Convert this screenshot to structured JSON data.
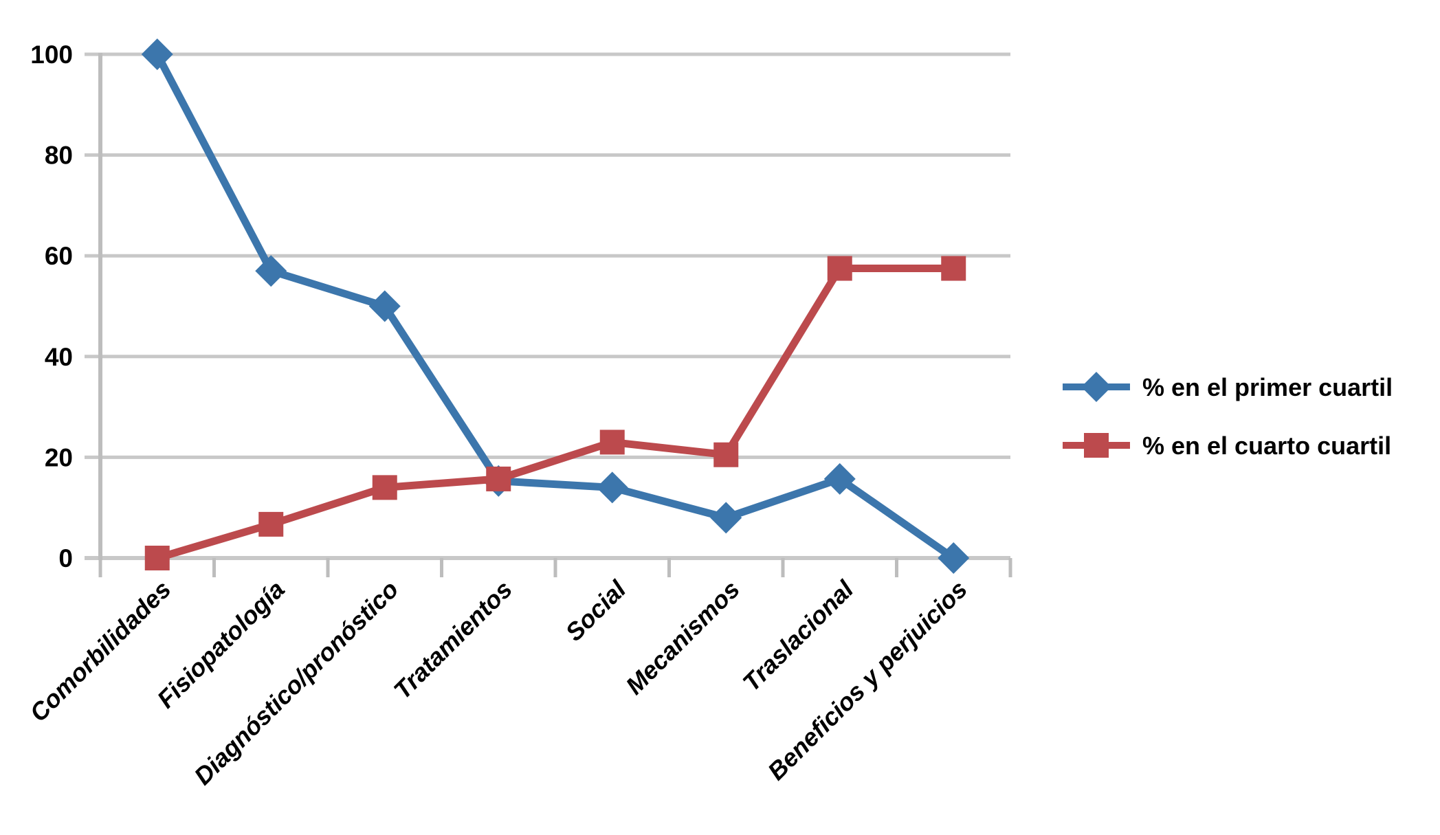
{
  "chart_data": {
    "type": "line",
    "title": "",
    "xlabel": "",
    "ylabel": "",
    "categories": [
      "Comorbilidades",
      "Fisiopatología",
      "Diagnóstico/pronóstico",
      "Tratamientos",
      "Social",
      "Mecanismos",
      "Traslacional",
      "Beneficios y perjuicios"
    ],
    "series": [
      {
        "name": "% en el primer cuartil",
        "marker": "diamond",
        "color": "#3C76AC",
        "values": [
          100,
          57,
          50,
          15.3,
          14,
          8,
          15.7,
          0
        ]
      },
      {
        "name": "% en el cuarto cuartil",
        "marker": "square",
        "color": "#BC4A4D",
        "values": [
          0,
          6.7,
          14,
          15.7,
          23,
          20.5,
          57.5,
          57.5
        ]
      }
    ],
    "yticks": [
      0,
      20,
      40,
      60,
      80,
      100
    ],
    "ylim": [
      0,
      100
    ],
    "grid": "horizontal",
    "legend_position": "right-middle",
    "colors": {
      "gridline": "#C8C8C8",
      "axis": "#BDBDBD",
      "text": "#000000",
      "background": "#FFFFFF"
    }
  }
}
